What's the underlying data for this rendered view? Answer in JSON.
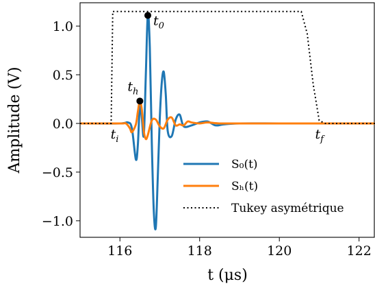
{
  "chart_data": {
    "type": "line",
    "title": "",
    "xlabel": "t (μs)",
    "ylabel": "Amplitude (V)",
    "xlim": [
      115.0,
      122.4
    ],
    "ylim": [
      -1.17,
      1.24
    ],
    "x_ticks": [
      116,
      118,
      120,
      122
    ],
    "x_tick_labels": [
      "116",
      "118",
      "120",
      "122"
    ],
    "y_ticks": [
      -1.0,
      -0.5,
      0.0,
      0.5,
      1.0
    ],
    "y_tick_labels": [
      "−1.0",
      "−0.5",
      "0.0",
      "0.5",
      "1.0"
    ],
    "grid": false,
    "legend_position": "lower-right",
    "series": [
      {
        "name": "S0(t)",
        "legend_label": "S₀(t)",
        "color": "#1f77b4",
        "style": "solid",
        "x": [
          115.0,
          116.0,
          116.2,
          116.3,
          116.4,
          116.45,
          116.5,
          116.55,
          116.6,
          116.65,
          116.7,
          116.75,
          116.8,
          116.85,
          116.9,
          116.95,
          117.0,
          117.05,
          117.1,
          117.15,
          117.2,
          117.3,
          117.4,
          117.5,
          117.6,
          117.8,
          118.0,
          118.2,
          118.4,
          118.6,
          119.0,
          120.0,
          121.0,
          122.4
        ],
        "y": [
          0.0,
          0.0,
          0.01,
          -0.05,
          -0.37,
          -0.22,
          0.18,
          0.05,
          -0.12,
          0.5,
          1.12,
          0.78,
          -0.2,
          -0.9,
          -1.07,
          -0.55,
          0.05,
          0.42,
          0.53,
          0.3,
          -0.08,
          -0.13,
          0.04,
          0.09,
          -0.03,
          -0.02,
          0.01,
          0.02,
          -0.02,
          -0.01,
          0.0,
          0.0,
          0.0,
          0.0
        ]
      },
      {
        "name": "Sh(t)",
        "legend_label": "Sₕ(t)",
        "color": "#ff7f0e",
        "style": "solid",
        "x": [
          115.0,
          116.0,
          116.15,
          116.25,
          116.3,
          116.4,
          116.45,
          116.5,
          116.55,
          116.6,
          116.65,
          116.7,
          116.8,
          116.9,
          117.0,
          117.1,
          117.2,
          117.3,
          117.4,
          117.5,
          117.6,
          117.7,
          117.8,
          118.0,
          118.2,
          118.5,
          119.0,
          120.0,
          121.0,
          122.4
        ],
        "y": [
          0.0,
          0.0,
          0.0,
          -0.05,
          -0.09,
          -0.01,
          0.12,
          0.23,
          0.14,
          -0.08,
          -0.16,
          -0.12,
          0.03,
          0.04,
          -0.03,
          -0.05,
          0.04,
          0.06,
          -0.02,
          -0.01,
          -0.02,
          0.02,
          0.01,
          0.0,
          0.01,
          0.0,
          0.0,
          0.0,
          0.0,
          0.0
        ]
      },
      {
        "name": "Tukey asymétrique",
        "legend_label": "Tukey asymétrique",
        "color": "#000000",
        "style": "dotted",
        "x": [
          115.0,
          115.78,
          115.82,
          115.86,
          120.55,
          120.7,
          120.85,
          121.0,
          121.15,
          122.4
        ],
        "y": [
          0.0,
          0.0,
          1.15,
          1.15,
          1.15,
          0.92,
          0.4,
          0.03,
          0.0,
          0.0
        ]
      }
    ],
    "annotations": [
      {
        "label": "t",
        "sub": "0",
        "x": 116.7,
        "y": 1.11,
        "marker": true
      },
      {
        "label": "t",
        "sub": "h",
        "x": 116.5,
        "y": 0.23,
        "marker": true
      },
      {
        "label": "t",
        "sub": "i",
        "x": 115.8,
        "y": 0.0,
        "marker": false
      },
      {
        "label": "t",
        "sub": "f",
        "x": 121.0,
        "y": 0.0,
        "marker": false
      }
    ]
  }
}
